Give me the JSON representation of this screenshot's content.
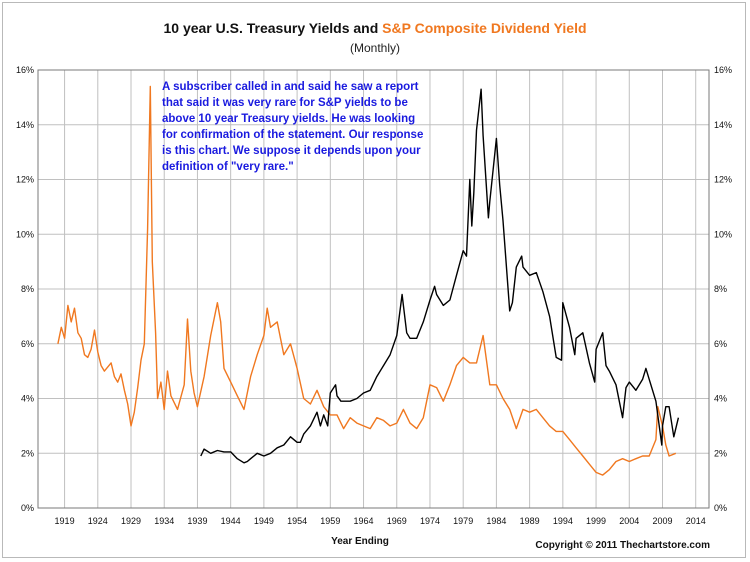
{
  "chart_data": {
    "type": "line",
    "title_part1": "10 year U.S. Treasury Yields and ",
    "title_part2": "S&P Composite Dividend Yield",
    "subtitle": "(Monthly)",
    "xlabel": "Year Ending",
    "ylabel": "",
    "xlim": [
      1915,
      2016
    ],
    "ylim": [
      0,
      16
    ],
    "y_ticks": [
      0,
      2,
      4,
      6,
      8,
      10,
      12,
      14,
      16
    ],
    "y_tick_labels": [
      "0%",
      "2%",
      "4%",
      "6%",
      "8%",
      "10%",
      "12%",
      "14%",
      "16%"
    ],
    "x_ticks": [
      1919,
      1924,
      1929,
      1934,
      1939,
      1944,
      1949,
      1954,
      1959,
      1964,
      1969,
      1974,
      1979,
      1984,
      1989,
      1994,
      1999,
      2004,
      2009,
      2014
    ],
    "grid": true,
    "annotation": [
      "A subscriber called in and said he saw a report",
      "that said it was very rare for S&P yields to be",
      "above 10 year Treasury yields.  He was looking",
      "for confirmation of the statement.  Our response",
      "is this chart.  We suppose it depends upon your",
      "definition of \"very rare.\""
    ],
    "copyright": "Copyright © 2011 Thechartstore.com",
    "colors": {
      "treasury": "#000000",
      "dividend": "#f07820",
      "grid": "#c0c0c0",
      "annotation": "#1a1adf"
    },
    "series": [
      {
        "color": "#000000",
        "x": [
          1939.5,
          1940,
          1941,
          1942,
          1943,
          1944,
          1945,
          1946,
          1946.5,
          1947,
          1948,
          1949,
          1950,
          1951,
          1952,
          1953,
          1954,
          1954.5,
          1955,
          1956,
          1957,
          1957.5,
          1958,
          1958.6,
          1959,
          1959.8,
          1960,
          1960.6,
          1961,
          1962,
          1963,
          1964,
          1965,
          1966,
          1967,
          1968,
          1969,
          1969.8,
          1970,
          1970.5,
          1971,
          1972,
          1973,
          1974,
          1974.7,
          1975,
          1976,
          1977,
          1978,
          1979,
          1979.5,
          1980,
          1980.3,
          1980.6,
          1981,
          1981.7,
          1982,
          1982.8,
          1983,
          1984,
          1984.5,
          1985,
          1986,
          1986.4,
          1987,
          1987.8,
          1988,
          1989,
          1990,
          1991,
          1992,
          1993,
          1993.8,
          1994,
          1995,
          1995.8,
          1996,
          1997,
          1998,
          1998.8,
          1999,
          2000,
          2000.5,
          2001,
          2002,
          2003,
          2003.5,
          2004,
          2005,
          2006,
          2006.5,
          2007,
          2008,
          2008.9,
          2009,
          2009.5,
          2010,
          2010.7,
          2011.4
        ],
        "values": [
          1.9,
          2.15,
          2.0,
          2.1,
          2.05,
          2.05,
          1.8,
          1.65,
          1.7,
          1.8,
          2.0,
          1.9,
          2.0,
          2.2,
          2.3,
          2.6,
          2.4,
          2.4,
          2.7,
          3.0,
          3.5,
          3.0,
          3.4,
          3.0,
          4.2,
          4.5,
          4.1,
          3.9,
          3.9,
          3.9,
          4.0,
          4.2,
          4.3,
          4.8,
          5.2,
          5.6,
          6.3,
          7.8,
          7.4,
          6.4,
          6.2,
          6.2,
          6.8,
          7.6,
          8.1,
          7.8,
          7.4,
          7.6,
          8.5,
          9.4,
          9.2,
          12.0,
          10.3,
          11.5,
          13.8,
          15.3,
          13.6,
          10.6,
          11.2,
          13.5,
          11.8,
          10.5,
          7.2,
          7.5,
          8.8,
          9.2,
          8.8,
          8.5,
          8.6,
          7.9,
          7.0,
          5.5,
          5.4,
          7.5,
          6.6,
          5.6,
          6.2,
          6.4,
          5.3,
          4.6,
          5.8,
          6.4,
          5.2,
          5.0,
          4.5,
          3.3,
          4.4,
          4.6,
          4.3,
          4.7,
          5.1,
          4.7,
          3.9,
          2.3,
          3.0,
          3.7,
          3.7,
          2.6,
          3.3
        ]
      },
      {
        "color": "#f07820",
        "x": [
          1918,
          1918.5,
          1919,
          1919.5,
          1920,
          1920.5,
          1921,
          1921.5,
          1922,
          1922.5,
          1923,
          1923.5,
          1924,
          1924.5,
          1925,
          1926,
          1926.5,
          1927,
          1927.5,
          1928,
          1928.5,
          1929,
          1929.5,
          1930,
          1930.5,
          1931,
          1931.5,
          1931.9,
          1932.2,
          1932.7,
          1933,
          1933.5,
          1934,
          1934.5,
          1935,
          1936,
          1937,
          1937.5,
          1938,
          1938.5,
          1939,
          1940,
          1941,
          1942,
          1942.5,
          1943,
          1944,
          1945,
          1946,
          1947,
          1948,
          1949,
          1949.5,
          1950,
          1951,
          1951.5,
          1952,
          1953,
          1954,
          1955,
          1956,
          1957,
          1958,
          1959,
          1960,
          1961,
          1962,
          1963,
          1964,
          1965,
          1966,
          1967,
          1968,
          1969,
          1970,
          1971,
          1972,
          1973,
          1974,
          1975,
          1976,
          1977,
          1978,
          1979,
          1980,
          1981,
          1982,
          1983,
          1984,
          1985,
          1986,
          1987,
          1988,
          1989,
          1990,
          1991,
          1992,
          1993,
          1994,
          1995,
          1996,
          1997,
          1998,
          1999,
          2000,
          2001,
          2002,
          2003,
          2004,
          2005,
          2006,
          2007,
          2008,
          2008.3,
          2009,
          2009.5,
          2010,
          2011
        ],
        "values": [
          6.0,
          6.6,
          6.2,
          7.4,
          6.8,
          7.3,
          6.4,
          6.2,
          5.6,
          5.5,
          5.8,
          6.5,
          5.7,
          5.2,
          5.0,
          5.3,
          4.8,
          4.6,
          4.9,
          4.3,
          3.8,
          3.0,
          3.5,
          4.4,
          5.4,
          6.0,
          10.2,
          15.4,
          9.0,
          6.4,
          4.0,
          4.6,
          3.6,
          5.0,
          4.1,
          3.6,
          4.5,
          6.9,
          5.0,
          4.2,
          3.7,
          4.8,
          6.3,
          7.5,
          6.8,
          5.1,
          4.6,
          4.1,
          3.6,
          4.8,
          5.6,
          6.3,
          7.3,
          6.6,
          6.8,
          6.2,
          5.6,
          6.0,
          5.1,
          4.0,
          3.8,
          4.3,
          3.7,
          3.4,
          3.4,
          2.9,
          3.3,
          3.1,
          3.0,
          2.9,
          3.3,
          3.2,
          3.0,
          3.1,
          3.6,
          3.1,
          2.9,
          3.3,
          4.5,
          4.4,
          3.9,
          4.5,
          5.2,
          5.5,
          5.3,
          5.3,
          6.3,
          4.5,
          4.5,
          4.0,
          3.6,
          2.9,
          3.6,
          3.5,
          3.6,
          3.3,
          3.0,
          2.8,
          2.8,
          2.5,
          2.2,
          1.9,
          1.6,
          1.3,
          1.2,
          1.4,
          1.7,
          1.8,
          1.7,
          1.8,
          1.9,
          1.9,
          2.5,
          3.7,
          3.0,
          2.3,
          1.9,
          2.0
        ]
      }
    ]
  }
}
